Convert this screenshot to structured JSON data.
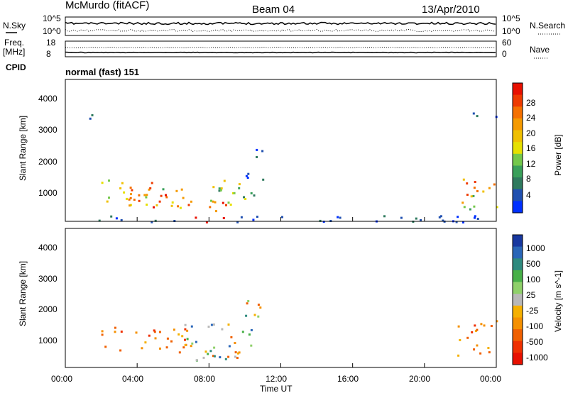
{
  "header": {
    "station": "McMurdo (fitACF)",
    "beam": "Beam 04",
    "date": "13/Apr/2010"
  },
  "summary_panel": {
    "nsky_label": "N.Sky",
    "nsearch_label": "N.Search",
    "noise_ticks_left": [
      "10^5",
      "10^0"
    ],
    "noise_ticks_right": [
      "10^5",
      "10^0"
    ],
    "freq_label_1": "Freq.",
    "freq_label_2": "[MHz]",
    "freq_ticks": [
      "18",
      "8"
    ],
    "nave_label": "Nave",
    "nave_ticks": [
      "60",
      "0"
    ],
    "cpid_label": "CPID",
    "cpid_value": "normal (fast) 151"
  },
  "chart_data": [
    {
      "type": "heatmap",
      "name": "power",
      "ylabel": "Slant Range [km]",
      "yticks": [
        "1000",
        "2000",
        "3000",
        "4000"
      ],
      "ylim": [
        200,
        4600
      ],
      "xlim": [
        0,
        24
      ],
      "colorbar": {
        "label": "Power [dB]",
        "ticks": [
          "4",
          "8",
          "12",
          "16",
          "20",
          "24",
          "28"
        ],
        "range": [
          0,
          32
        ],
        "colors": [
          "#0030ff",
          "#2050b0",
          "#2f7a5e",
          "#3aa05a",
          "#74c84b",
          "#e6e000",
          "#f0c000",
          "#f59a00",
          "#f57000",
          "#ee3a00",
          "#e81000"
        ]
      },
      "regions": [
        {
          "t": [
            2.0,
            6.8
          ],
          "r": [
            600,
            1500
          ],
          "level": "mid-high"
        },
        {
          "t": [
            3.5,
            5.8
          ],
          "r": [
            600,
            1100
          ],
          "level": "high"
        },
        {
          "t": [
            6.7,
            9.0
          ],
          "r": [
            200,
            900
          ],
          "level": "high"
        },
        {
          "t": [
            8.0,
            10.6
          ],
          "r": [
            600,
            1500
          ],
          "level": "mid"
        },
        {
          "t": [
            10.0,
            11.0
          ],
          "r": [
            1500,
            2500
          ],
          "level": "low"
        },
        {
          "t": [
            21.8,
            24.0
          ],
          "r": [
            600,
            1600
          ],
          "level": "mid-high"
        },
        {
          "t": [
            1.0,
            1.5
          ],
          "r": [
            3100,
            3600
          ],
          "level": "low"
        },
        {
          "t": [
            22.0,
            24.0
          ],
          "r": [
            3400,
            3600
          ],
          "level": "low"
        },
        {
          "t": [
            0.0,
            24.0
          ],
          "r": [
            200,
            400
          ],
          "level": "low"
        }
      ]
    },
    {
      "type": "heatmap",
      "name": "velocity",
      "ylabel": "Slant Range [km]",
      "yticks": [
        "1000",
        "2000",
        "3000",
        "4000"
      ],
      "ylim": [
        200,
        4600
      ],
      "xlabel": "Time UT",
      "xticks": [
        "00:00",
        "04:00",
        "08:00",
        "12:00",
        "16:00",
        "20:00",
        "00:00"
      ],
      "xlim": [
        0,
        24
      ],
      "colorbar": {
        "label": "Velocity [m s^-1]",
        "ticks": [
          "1000",
          "500",
          "100",
          "25",
          "-25",
          "-100",
          "-500",
          "-1000"
        ],
        "colors": [
          "#1838a0",
          "#2a66b8",
          "#2e8a7e",
          "#48b048",
          "#8fd06a",
          "#b8b8b8",
          "#f5b000",
          "#f59000",
          "#f06000",
          "#ef3000",
          "#e81000"
        ]
      },
      "regions": [
        {
          "t": [
            2.0,
            6.8
          ],
          "r": [
            700,
            1500
          ],
          "level": "away"
        },
        {
          "t": [
            6.5,
            10.5
          ],
          "r": [
            300,
            1600
          ],
          "level": "mixed"
        },
        {
          "t": [
            10.0,
            11.0
          ],
          "r": [
            1500,
            2500
          ],
          "level": "mixed"
        },
        {
          "t": [
            21.8,
            24.0
          ],
          "r": [
            600,
            1700
          ],
          "level": "away"
        }
      ]
    }
  ]
}
